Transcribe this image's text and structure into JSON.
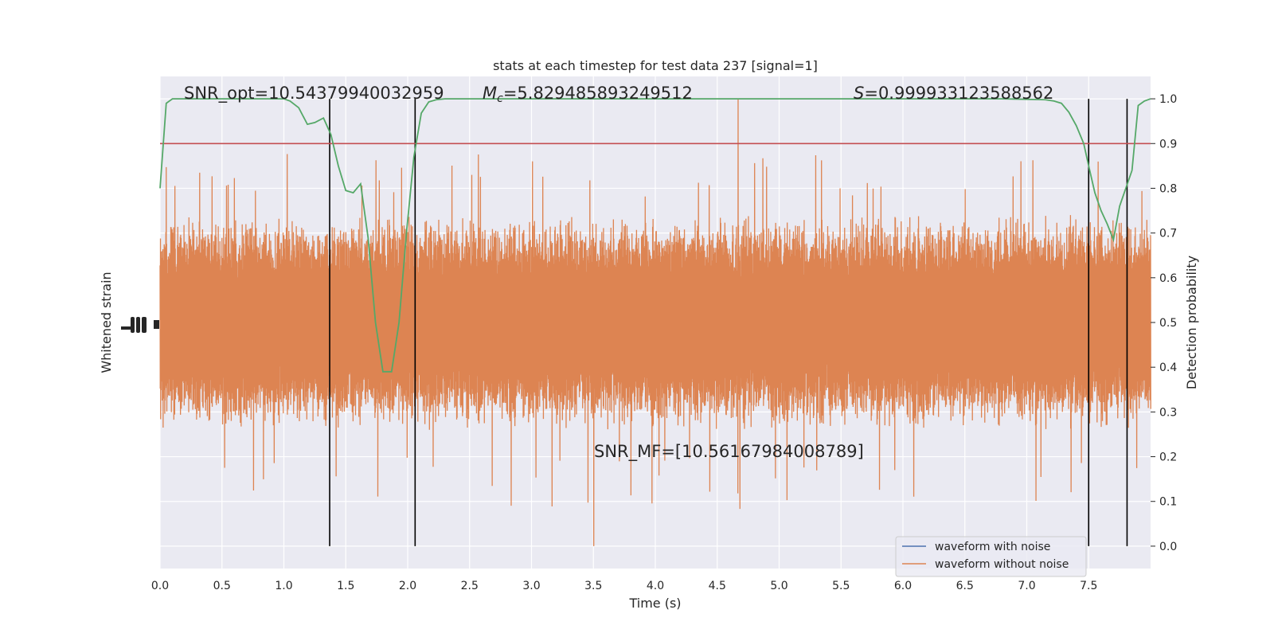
{
  "chart_data": {
    "type": "line",
    "title": "stats at each timestep for test data 237 [signal=1]",
    "xlabel": "Time (s)",
    "ylabel_left": "Whitened strain",
    "ylabel_right": "Detection probability",
    "xlim": [
      0,
      8
    ],
    "ylim_right": [
      -0.05,
      1.05
    ],
    "x_ticks": [
      0.0,
      0.5,
      1.0,
      1.5,
      2.0,
      2.5,
      3.0,
      3.5,
      4.0,
      4.5,
      5.0,
      5.5,
      6.0,
      6.5,
      7.0,
      7.5
    ],
    "x_tick_labels": [
      "0.0",
      "0.5",
      "1.0",
      "1.5",
      "2.0",
      "2.5",
      "3.0",
      "3.5",
      "4.0",
      "4.5",
      "5.0",
      "5.5",
      "6.0",
      "6.5",
      "7.0",
      "7.5"
    ],
    "y_ticks_right": [
      0.0,
      0.1,
      0.2,
      0.3,
      0.4,
      0.5,
      0.6,
      0.7,
      0.8,
      0.9,
      1.0
    ],
    "y_tick_labels_right": [
      "0.0",
      "0.1",
      "0.2",
      "0.3",
      "0.4",
      "0.5",
      "0.6",
      "0.7",
      "0.8",
      "0.9",
      "1.0"
    ],
    "grid": true,
    "legend_position": "lower-right",
    "annotations": {
      "snr_opt": "SNR_opt=10.54379940032959",
      "mc_symbol": "M",
      "mc_sub": "c",
      "mc_value": "=5.829485893249512",
      "s_symbol": "S",
      "s_value": "=0.999933123588562",
      "snr_mf": "SNR_MF=[10.56167984008789]"
    },
    "threshold": 0.9,
    "vertical_lines": [
      1.37,
      2.06,
      7.5,
      7.81
    ],
    "series": [
      {
        "name": "waveform with noise",
        "color": "#4c72b0"
      },
      {
        "name": "waveform without noise",
        "color": "#dd8452",
        "envelope": {
          "center": 0.5,
          "typical_half_range": 0.22,
          "peak_max": 1.0,
          "peak_min": 0.0
        }
      },
      {
        "color": "#55a868",
        "x": [
          0.0,
          0.05,
          0.1,
          0.2,
          0.3,
          0.5,
          0.7,
          0.9,
          1.0,
          1.05,
          1.12,
          1.19,
          1.25,
          1.32,
          1.38,
          1.44,
          1.5,
          1.56,
          1.62,
          1.68,
          1.74,
          1.8,
          1.87,
          1.93,
          1.99,
          2.05,
          2.11,
          2.17,
          2.23,
          2.3,
          2.4,
          2.6,
          3.0,
          4.0,
          5.0,
          6.0,
          6.8,
          7.15,
          7.22,
          7.28,
          7.34,
          7.4,
          7.46,
          7.5,
          7.55,
          7.6,
          7.65,
          7.7,
          7.75,
          7.8,
          7.85,
          7.9,
          7.95,
          8.0
        ],
        "y": [
          0.8,
          0.99,
          1.0,
          1.0,
          1.0,
          1.0,
          1.0,
          1.0,
          1.0,
          0.995,
          0.98,
          0.943,
          0.947,
          0.957,
          0.92,
          0.85,
          0.795,
          0.79,
          0.81,
          0.69,
          0.5,
          0.39,
          0.39,
          0.5,
          0.7,
          0.87,
          0.968,
          0.993,
          0.998,
          1.0,
          1.0,
          1.0,
          1.0,
          1.0,
          1.0,
          1.0,
          1.0,
          0.998,
          0.995,
          0.99,
          0.97,
          0.94,
          0.9,
          0.85,
          0.79,
          0.75,
          0.72,
          0.685,
          0.76,
          0.8,
          0.84,
          0.985,
          0.995,
          1.0
        ]
      },
      {
        "color": "#c44e52",
        "y": [
          0.9,
          0.9
        ]
      }
    ]
  }
}
